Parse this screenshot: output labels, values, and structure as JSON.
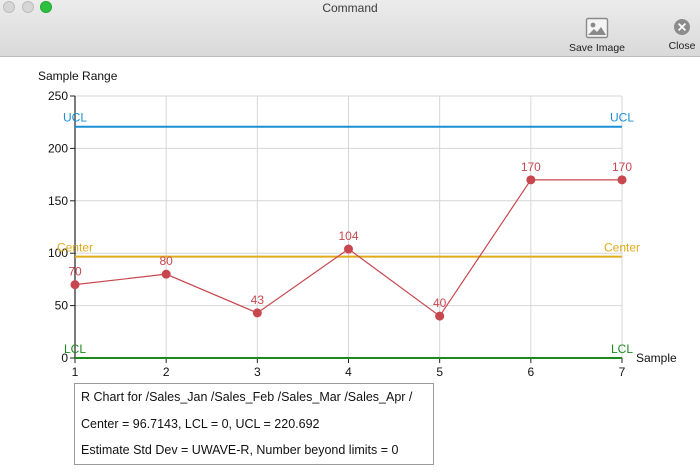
{
  "window": {
    "title": "Command"
  },
  "toolbar": {
    "save_label": "Save Image",
    "close_label": "Close"
  },
  "colors": {
    "ucl": "#1a8fd6",
    "center": "#e2aa1a",
    "lcl": "#1e8a1e",
    "series": "#c8474f",
    "grid": "#d6d6d6"
  },
  "chart_data": {
    "type": "line",
    "ylabel": "Sample Range",
    "xlabel": "Sample",
    "x": [
      1,
      2,
      3,
      4,
      5,
      6,
      7
    ],
    "values": [
      70,
      80,
      43,
      104,
      40,
      170,
      170
    ],
    "data_labels": [
      "70",
      "80",
      "43",
      "104",
      "40",
      "170",
      "170"
    ],
    "x_ticks": [
      "1",
      "2",
      "3",
      "4",
      "5",
      "6",
      "7"
    ],
    "y_ticks": [
      0,
      50,
      100,
      150,
      200,
      250
    ],
    "xlim": [
      1,
      7
    ],
    "ylim": [
      0,
      250
    ],
    "grid": true,
    "control_lines": [
      {
        "label": "UCL",
        "value": 220.692,
        "color": "#1a8fd6"
      },
      {
        "label": "Center",
        "value": 96.7143,
        "color": "#e2aa1a"
      },
      {
        "label": "LCL",
        "value": 0,
        "color": "#1e8a1e"
      }
    ]
  },
  "info": {
    "line1": "R Chart for /Sales_Jan /Sales_Feb /Sales_Mar /Sales_Apr /",
    "line2": "Center = 96.7143, LCL = 0, UCL = 220.692",
    "line3": "Estimate Std Dev = UWAVE-R, Number beyond limits = 0"
  }
}
